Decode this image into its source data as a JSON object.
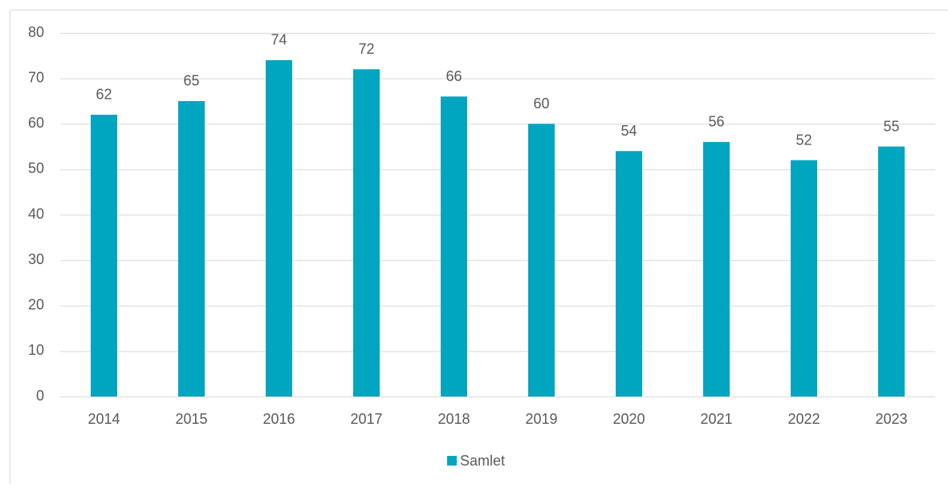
{
  "chart_data": {
    "type": "bar",
    "categories": [
      "2014",
      "2015",
      "2016",
      "2017",
      "2018",
      "2019",
      "2020",
      "2021",
      "2022",
      "2023"
    ],
    "series": [
      {
        "name": "Samlet",
        "color": "#00a5c0",
        "values": [
          62,
          65,
          74,
          72,
          66,
          60,
          54,
          56,
          52,
          55
        ]
      }
    ],
    "ylim": [
      0,
      80
    ],
    "yticks": [
      0,
      10,
      20,
      30,
      40,
      50,
      60,
      70,
      80
    ],
    "grid": true,
    "legend": "bottom"
  }
}
